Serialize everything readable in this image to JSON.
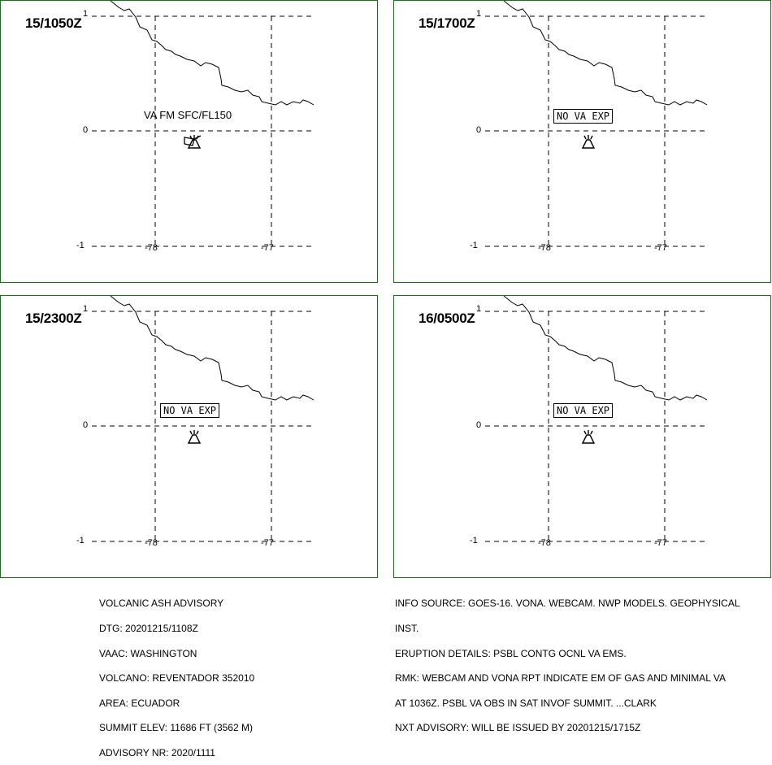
{
  "panels": [
    {
      "time": "15/1050Z",
      "va_text": "VA FM SFC/FL150",
      "va_boxed": false,
      "lat_top": "1",
      "lat_mid": "0",
      "lat_bot": "-1",
      "lon_left": "-78",
      "lon_right": "-77"
    },
    {
      "time": "15/1700Z",
      "va_text": "NO VA EXP",
      "va_boxed": true,
      "lat_top": "1",
      "lat_mid": "0",
      "lat_bot": "-1",
      "lon_left": "-78",
      "lon_right": "-77"
    },
    {
      "time": "15/2300Z",
      "va_text": "NO VA EXP",
      "va_boxed": true,
      "lat_top": "1",
      "lat_mid": "0",
      "lat_bot": "-1",
      "lon_left": "-78",
      "lon_right": "-77"
    },
    {
      "time": "16/0500Z",
      "va_text": "NO VA EXP",
      "va_boxed": true,
      "lat_top": "1",
      "lat_mid": "0",
      "lat_bot": "-1",
      "lon_left": "-78",
      "lon_right": "-77"
    }
  ],
  "advisory_left": [
    "VOLCANIC ASH ADVISORY",
    "DTG: 20201215/1108Z",
    "VAAC: WASHINGTON",
    "VOLCANO: REVENTADOR 352010",
    "AREA: ECUADOR",
    "SUMMIT ELEV: 11686 FT (3562 M)",
    "ADVISORY NR: 2020/1111"
  ],
  "advisory_right": [
    "INFO SOURCE: GOES-16. VONA. WEBCAM. NWP MODELS. GEOPHYSICAL",
    "INST.",
    "ERUPTION DETAILS: PSBL CONTG OCNL VA EMS.",
    "RMK: WEBCAM AND VONA RPT INDICATE EM OF GAS AND MINIMAL VA",
    "AT 1036Z. PSBL VA OBS IN SAT INVOF SUMMIT. ...CLARK",
    "NXT ADVISORY: WILL BE ISSUED BY 20201215/1715Z"
  ],
  "colors": {
    "panel_border": "#0a7a0a",
    "lines": "#000000"
  },
  "icons": {
    "volcano": "volcano-icon",
    "ash_cloud": "ash-cloud-icon"
  }
}
